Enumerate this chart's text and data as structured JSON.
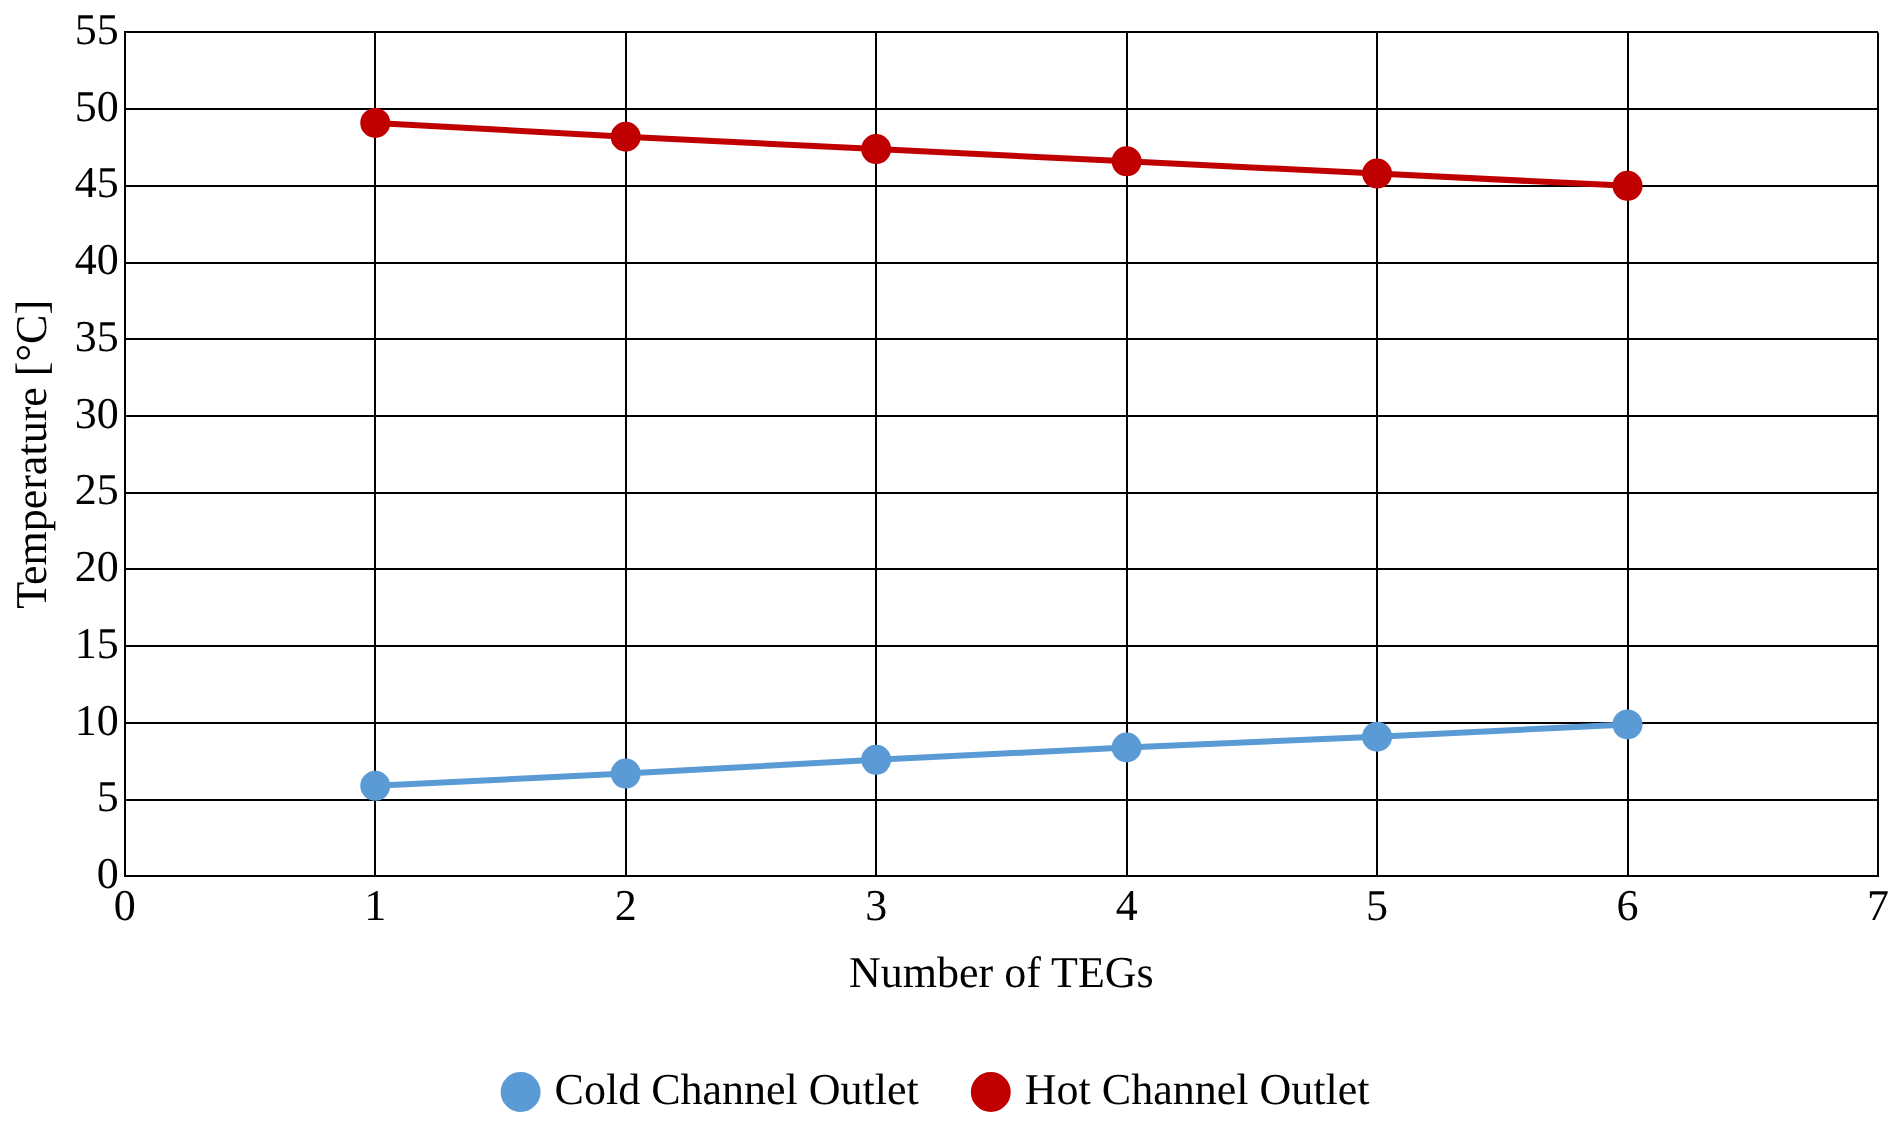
{
  "chart_data": {
    "type": "line",
    "xlabel": "Number of TEGs",
    "ylabel": "Temperature [°C]",
    "x": [
      1,
      2,
      3,
      4,
      5,
      6
    ],
    "series": [
      {
        "name": "Cold Channel Outlet",
        "color": "#5b9bd5",
        "values": [
          5.9,
          6.7,
          7.6,
          8.4,
          9.1,
          9.9
        ]
      },
      {
        "name": "Hot Channel Outlet",
        "color": "#c00000",
        "values": [
          49.1,
          48.2,
          47.4,
          46.6,
          45.8,
          45.0
        ]
      }
    ],
    "xlim": [
      0,
      7
    ],
    "xticks": [
      0,
      1,
      2,
      3,
      4,
      5,
      6,
      7
    ],
    "ylim": [
      0,
      55
    ],
    "yticks": [
      0,
      5,
      10,
      15,
      20,
      25,
      30,
      35,
      40,
      45,
      50,
      55
    ],
    "grid": true,
    "legend": "bottom",
    "marker": "circle",
    "line_style": "solid"
  }
}
